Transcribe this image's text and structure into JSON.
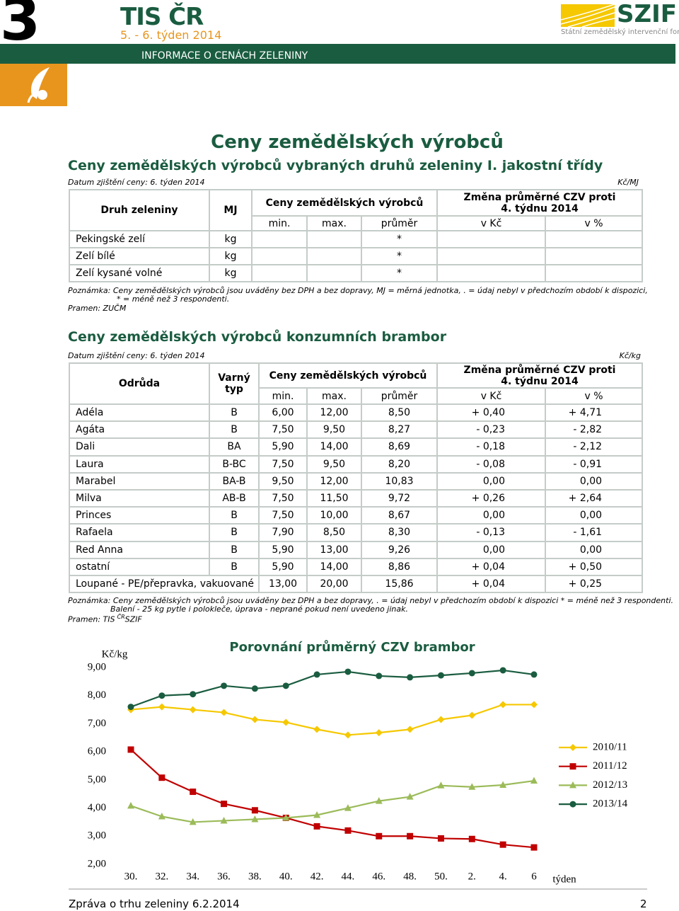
{
  "header": {
    "number": "3",
    "brand": "TIS ČR",
    "period": "5. - 6. týden 2014",
    "banner": "INFORMACE O CENÁCH ZELENINY",
    "logo": "SZIF",
    "logo_subtitle": "Státní zemědělský intervenční fond"
  },
  "page_title": "Ceny zemědělských výrobců",
  "section1": {
    "title": "Ceny zemědělských výrobců vybraných druhů zeleniny I. jakostní třídy",
    "date": "Datum zjištění ceny: 6. týden 2014",
    "unit": "Kč/MJ",
    "table": {
      "headers": {
        "name": "Druh zeleniny",
        "unit": "MJ",
        "prices": "Ceny zemědělských výrobců",
        "change": "Změna průměrné CZV  proti 4. týdnu 2014",
        "min": "min.",
        "max": "max.",
        "avg": "průměr",
        "abs": "v Kč",
        "pct": "v %"
      },
      "rows": [
        [
          "Pekingské zelí",
          "kg",
          "*"
        ],
        [
          "Zelí bílé",
          "kg",
          "*"
        ],
        [
          "Zelí kysané volné",
          "kg",
          "*"
        ]
      ]
    },
    "notes": [
      "Poznámka: Ceny zemědělských výrobců jsou uváděny bez DPH a bez dopravy, MJ = měrná jednotka, . = údaj nebyl v předchozím období k dispozici,",
      "* = méně než 3 respondenti."
    ],
    "source": "Pramen: ZUČM"
  },
  "section2": {
    "title": "Ceny zemědělských výrobců konzumních brambor",
    "date": "Datum zjištění ceny: 6. týden 2014",
    "unit": "Kč/kg",
    "table": {
      "headers": {
        "name": "Odrůda",
        "type": "Varný typ",
        "prices": "Ceny zemědělských výrobců",
        "change": "Změna průměrné CZV  proti 4. týdnu 2014",
        "min": "min.",
        "max": "max.",
        "avg": "průměr",
        "abs": "v Kč",
        "pct": "v %"
      },
      "rows": [
        [
          "Adéla",
          "B",
          "6,00",
          "12,00",
          "8,50",
          "+ 0,40",
          "+ 4,71"
        ],
        [
          "Agáta",
          "B",
          "7,50",
          "9,50",
          "8,27",
          "- 0,23",
          "- 2,82"
        ],
        [
          "Dali",
          "BA",
          "5,90",
          "14,00",
          "8,69",
          "- 0,18",
          "- 2,12"
        ],
        [
          "Laura",
          "B-BC",
          "7,50",
          "9,50",
          "8,20",
          "- 0,08",
          "- 0,91"
        ],
        [
          "Marabel",
          "BA-B",
          "9,50",
          "12,00",
          "10,83",
          "0,00",
          "0,00"
        ],
        [
          "Milva",
          "AB-B",
          "7,50",
          "11,50",
          "9,72",
          "+ 0,26",
          "+ 2,64"
        ],
        [
          "Princes",
          "B",
          "7,50",
          "10,00",
          "8,67",
          "0,00",
          "0,00"
        ],
        [
          "Rafaela",
          "B",
          "7,90",
          "8,50",
          "8,30",
          "- 0,13",
          "- 1,61"
        ],
        [
          "Red Anna",
          "B",
          "5,90",
          "13,00",
          "9,26",
          "0,00",
          "0,00"
        ],
        [
          "ostatní",
          "B",
          "5,90",
          "14,00",
          "8,86",
          "+ 0,04",
          "+ 0,50"
        ],
        [
          "Loupané - PE/přepravka, vakuované",
          "13,00",
          "20,00",
          "15,86",
          "+ 0,04",
          "+ 0,25"
        ]
      ]
    },
    "notes": [
      "Poznámka: Ceny zemědělských výrobců jsou uváděny bez DPH a bez dopravy, . = údaj nebyl v předchozím období k dispozici * = méně než 3 respondenti.",
      "Balení -  25 kg pytle i polokleče, úprava - neprané pokud není uvedeno jinak."
    ],
    "source": [
      "Pramen: TIS",
      "ČR",
      "SZIF"
    ]
  },
  "chart_data": {
    "type": "line",
    "title": "Porovnání průměrný CZV brambor",
    "y_label": "Kč/kg",
    "x_label": "týden",
    "categories": [
      "30.",
      "32.",
      "34.",
      "36.",
      "38.",
      "40.",
      "42.",
      "44.",
      "46.",
      "48.",
      "50.",
      "2.",
      "4.",
      "6"
    ],
    "ylim": [
      2,
      9
    ],
    "yticks": [
      {
        "value": 2,
        "label": "2,00"
      },
      {
        "value": 3,
        "label": "3,00"
      },
      {
        "value": 4,
        "label": "4,00"
      },
      {
        "value": 5,
        "label": "5,00"
      },
      {
        "value": 6,
        "label": "6,00"
      },
      {
        "value": 7,
        "label": "7,00"
      },
      {
        "value": 8,
        "label": "8,00"
      },
      {
        "value": 9,
        "label": "9,00"
      }
    ],
    "grid": false,
    "legend": "right",
    "series": [
      {
        "name": "2010/11",
        "color": "#f5c800",
        "marker": "diamond",
        "values": [
          7.5,
          7.6,
          7.5,
          7.4,
          7.15,
          7.05,
          6.8,
          6.6,
          6.68,
          6.8,
          7.15,
          7.3,
          7.68,
          7.68
        ]
      },
      {
        "name": "2011/12",
        "color": "#c00000",
        "marker": "square",
        "values": [
          6.08,
          5.08,
          4.58,
          4.15,
          3.92,
          3.65,
          3.35,
          3.2,
          3.0,
          3.0,
          2.92,
          2.9,
          2.7,
          2.6
        ]
      },
      {
        "name": "2012/13",
        "color": "#9bbb59",
        "marker": "triangle",
        "values": [
          4.08,
          3.7,
          3.5,
          3.55,
          3.6,
          3.65,
          3.75,
          4.0,
          4.25,
          4.4,
          4.8,
          4.75,
          4.82,
          4.97
        ]
      },
      {
        "name": "2013/14",
        "color": "#1a5c40",
        "marker": "circle",
        "values": [
          7.6,
          8.0,
          8.05,
          8.35,
          8.25,
          8.35,
          8.75,
          8.85,
          8.7,
          8.65,
          8.72,
          8.8,
          8.9,
          8.75
        ]
      }
    ]
  },
  "footer": {
    "text": "Zpráva o trhu zeleniny 6.2.2014",
    "page": "2"
  }
}
